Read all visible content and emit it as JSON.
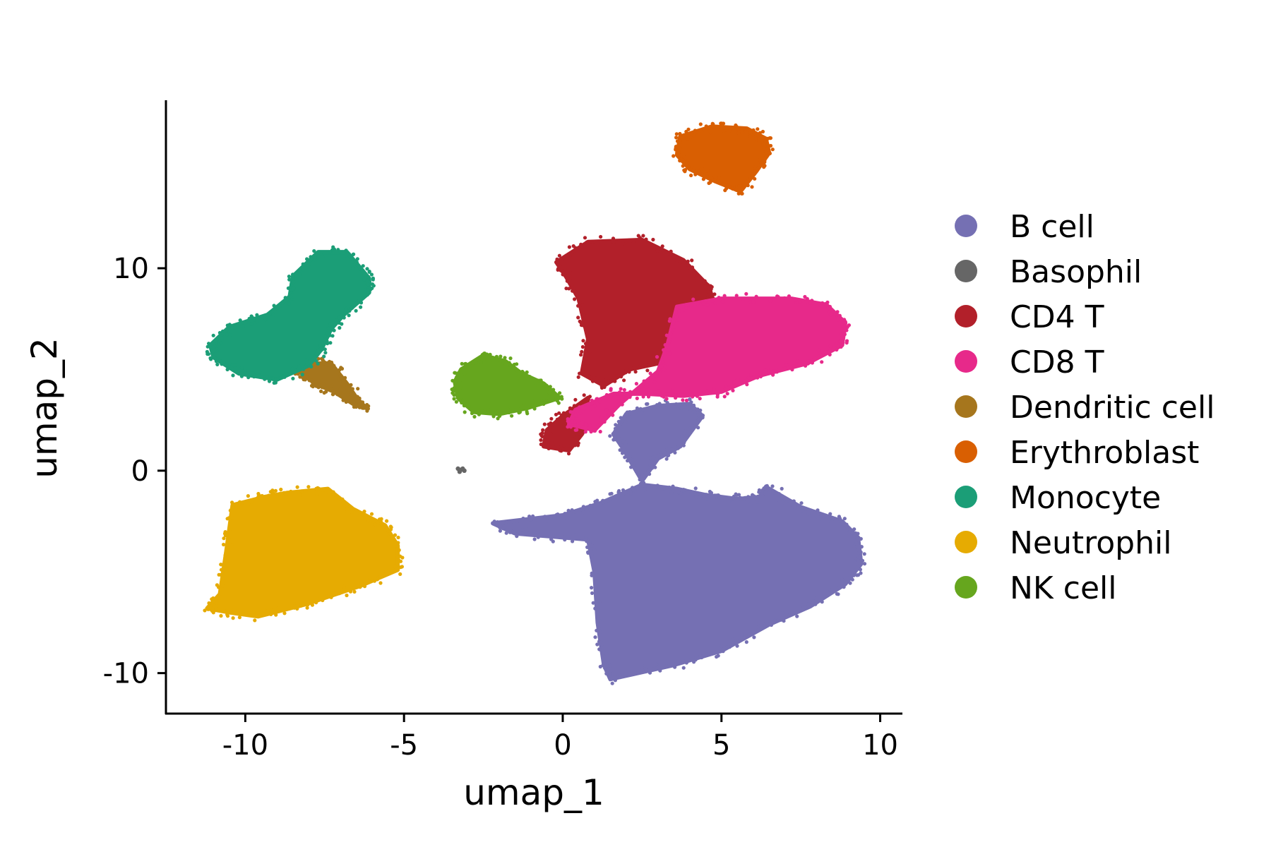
{
  "chart_data": {
    "type": "scatter",
    "title": "",
    "xlabel": "umap_1",
    "ylabel": "umap_2",
    "xlim": [
      -12.5,
      10.7
    ],
    "ylim": [
      -12,
      18.3
    ],
    "xticks": [
      -10,
      -5,
      0,
      5,
      10
    ],
    "yticks": [
      -10,
      0,
      10
    ],
    "xtick_labels": [
      "-10",
      "-5",
      "0",
      "5",
      "10"
    ],
    "ytick_labels": [
      "-10",
      "0",
      "10"
    ],
    "grid": false,
    "legend_position": "right",
    "point_style": "dense point clouds, several thousand cells per cluster; outlines approximate",
    "series": [
      {
        "name": "B cell",
        "color": "#7570B3",
        "outline": [
          [
            -2.2,
            -2.6
          ],
          [
            0,
            -2.2
          ],
          [
            1.2,
            -1.6
          ],
          [
            2.5,
            -0.7
          ],
          [
            3.6,
            -0.9
          ],
          [
            4.5,
            -1.2
          ],
          [
            5.5,
            -1.4
          ],
          [
            6.2,
            -1.3
          ],
          [
            6.4,
            -0.8
          ],
          [
            7.5,
            -1.8
          ],
          [
            8.8,
            -2.5
          ],
          [
            9.3,
            -3.3
          ],
          [
            9.4,
            -4.6
          ],
          [
            8.9,
            -5.6
          ],
          [
            7.8,
            -6.7
          ],
          [
            6.5,
            -7.6
          ],
          [
            5,
            -8.9
          ],
          [
            3.5,
            -9.6
          ],
          [
            1.5,
            -10.3
          ],
          [
            1.3,
            -9.6
          ],
          [
            1.1,
            -7.5
          ],
          [
            1,
            -5
          ],
          [
            0.8,
            -3.4
          ],
          [
            -1.5,
            -3.1
          ]
        ],
        "outline2": [
          [
            1.6,
            1.8
          ],
          [
            2,
            2.8
          ],
          [
            3,
            3.2
          ],
          [
            4,
            3.3
          ],
          [
            4.4,
            2.7
          ],
          [
            3.7,
            1.2
          ],
          [
            3,
            0.6
          ],
          [
            2.5,
            -0.5
          ],
          [
            1.9,
            1.1
          ]
        ]
      },
      {
        "name": "Basophil",
        "color": "#666666",
        "points": [
          [
            -3.3,
            0.1
          ],
          [
            -3.2,
            0.05
          ],
          [
            -3.25,
            -0.05
          ],
          [
            -3.15,
            0.1
          ],
          [
            -3.1,
            0.0
          ]
        ]
      },
      {
        "name": "CD4 T",
        "color": "#B2202A",
        "outline": [
          [
            -0.2,
            10.3
          ],
          [
            0.8,
            11.3
          ],
          [
            2.5,
            11.4
          ],
          [
            3.8,
            10.4
          ],
          [
            4.6,
            9.1
          ],
          [
            4.8,
            8.1
          ],
          [
            3.8,
            6.6
          ],
          [
            3.6,
            5.5
          ],
          [
            2.1,
            5
          ],
          [
            1.3,
            4.2
          ],
          [
            0.6,
            4.8
          ],
          [
            0.8,
            6.5
          ],
          [
            0.5,
            8.5
          ],
          [
            0.1,
            9.6
          ]
        ],
        "outline2": [
          [
            -0.6,
            1.2
          ],
          [
            -0.5,
            2
          ],
          [
            0,
            2.7
          ],
          [
            0.8,
            3.6
          ],
          [
            0.6,
            1.8
          ],
          [
            0.2,
            1.0
          ]
        ]
      },
      {
        "name": "CD8 T",
        "color": "#E7298A",
        "outline": [
          [
            3.6,
            8.1
          ],
          [
            5,
            8.5
          ],
          [
            7.2,
            8.5
          ],
          [
            8.3,
            8.2
          ],
          [
            8.9,
            7.3
          ],
          [
            8.8,
            6.2
          ],
          [
            7.7,
            5.3
          ],
          [
            6.2,
            4.7
          ],
          [
            5,
            3.9
          ],
          [
            3.8,
            3.7
          ],
          [
            2.6,
            3.8
          ],
          [
            1.6,
            3.8
          ],
          [
            0.4,
            3
          ],
          [
            0.2,
            2.3
          ],
          [
            1,
            2
          ],
          [
            1.8,
            3.3
          ],
          [
            3,
            4.9
          ],
          [
            3.3,
            6.2
          ]
        ]
      },
      {
        "name": "Dendritic cell",
        "color": "#A6761D",
        "outline": [
          [
            -8.3,
            5.7
          ],
          [
            -7.7,
            5.3
          ],
          [
            -7.3,
            5.3
          ],
          [
            -6.8,
            4.3
          ],
          [
            -6.5,
            3.6
          ],
          [
            -6.2,
            3.1
          ],
          [
            -6.6,
            3.3
          ],
          [
            -7.2,
            3.9
          ],
          [
            -7.8,
            4.3
          ],
          [
            -8.3,
            4.9
          ],
          [
            -8.5,
            5.3
          ]
        ]
      },
      {
        "name": "Erythroblast",
        "color": "#D95F02",
        "outline": [
          [
            3.7,
            16.5
          ],
          [
            4.7,
            17
          ],
          [
            5.8,
            16.9
          ],
          [
            6.4,
            16.4
          ],
          [
            6.5,
            15.7
          ],
          [
            6.1,
            14.8
          ],
          [
            5.6,
            13.8
          ],
          [
            4.8,
            14.3
          ],
          [
            4.0,
            14.9
          ],
          [
            3.6,
            15.6
          ]
        ]
      },
      {
        "name": "Monocyte",
        "color": "#1B9E77",
        "outline": [
          [
            -8.5,
            9.6
          ],
          [
            -7.7,
            10.8
          ],
          [
            -6.8,
            10.8
          ],
          [
            -6.1,
            9.5
          ],
          [
            -6.1,
            8.8
          ],
          [
            -6.9,
            7.7
          ],
          [
            -7.3,
            7.0
          ],
          [
            -7.6,
            6.0
          ],
          [
            -8.0,
            5.2
          ],
          [
            -9.0,
            4.5
          ],
          [
            -10.2,
            4.8
          ],
          [
            -11,
            5.6
          ],
          [
            -11.1,
            6.2
          ],
          [
            -10.5,
            7.1
          ],
          [
            -9.3,
            7.7
          ],
          [
            -8.6,
            8.6
          ]
        ]
      },
      {
        "name": "Neutrophil",
        "color": "#E6AB02",
        "outline": [
          [
            -10.4,
            -1.7
          ],
          [
            -9.4,
            -1.3
          ],
          [
            -8.7,
            -1.1
          ],
          [
            -7.4,
            -0.9
          ],
          [
            -6.6,
            -1.9
          ],
          [
            -5.6,
            -2.7
          ],
          [
            -5.2,
            -3.7
          ],
          [
            -5.2,
            -4.9
          ],
          [
            -6.4,
            -5.7
          ],
          [
            -8.1,
            -6.6
          ],
          [
            -9.6,
            -7.2
          ],
          [
            -10.5,
            -7.0
          ],
          [
            -11.2,
            -6.8
          ],
          [
            -10.8,
            -6.1
          ],
          [
            -10.6,
            -4.0
          ]
        ]
      },
      {
        "name": "NK cell",
        "color": "#66A61E",
        "outline": [
          [
            -3.2,
            5.0
          ],
          [
            -2.5,
            5.7
          ],
          [
            -1.8,
            5.4
          ],
          [
            -1.3,
            4.8
          ],
          [
            -0.6,
            4.3
          ],
          [
            -0.1,
            3.6
          ],
          [
            -1.1,
            3.1
          ],
          [
            -2.0,
            2.8
          ],
          [
            -2.8,
            2.9
          ],
          [
            -3.3,
            3.6
          ],
          [
            -3.4,
            4.4
          ]
        ]
      }
    ]
  }
}
